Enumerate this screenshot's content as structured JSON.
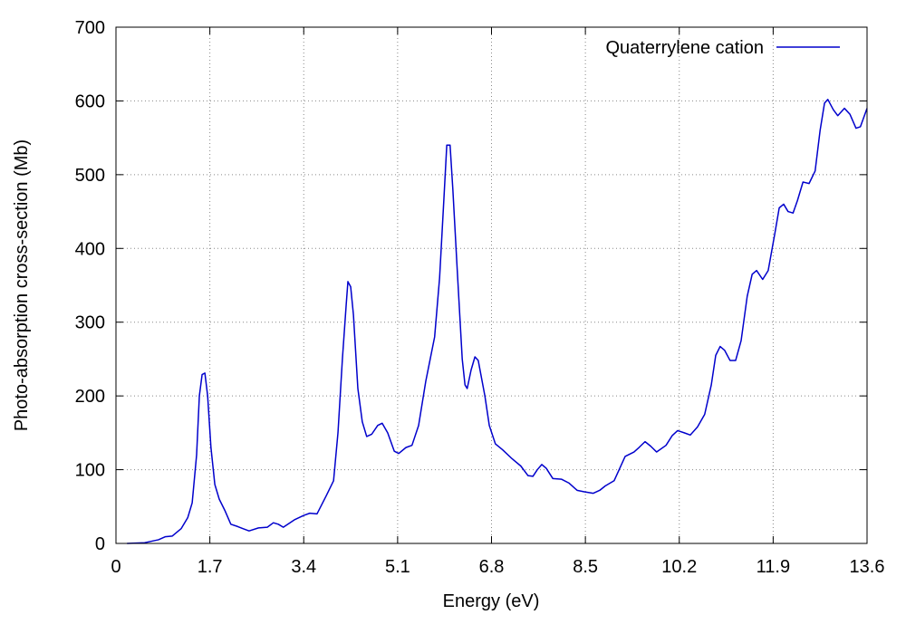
{
  "chart_data": {
    "type": "line",
    "xlabel": "Energy (eV)",
    "ylabel": "Photo-absorption cross-section (Mb)",
    "xlim": [
      0,
      13.6
    ],
    "xticks": [
      0,
      1.7,
      3.4,
      5.1,
      6.8,
      8.5,
      10.2,
      11.9,
      13.6
    ],
    "ylim": [
      0,
      700
    ],
    "yticks": [
      0,
      100,
      200,
      300,
      400,
      500,
      600,
      700
    ],
    "grid": true,
    "legend": "top-right",
    "x": [
      0.2,
      0.52,
      0.77,
      0.89,
      1.02,
      1.18,
      1.3,
      1.38,
      1.46,
      1.51,
      1.56,
      1.61,
      1.66,
      1.72,
      1.79,
      1.87,
      1.97,
      2.08,
      2.2,
      2.3,
      2.41,
      2.58,
      2.74,
      2.85,
      2.94,
      3.03,
      3.23,
      3.4,
      3.51,
      3.64,
      3.81,
      3.94,
      4.02,
      4.1,
      4.17,
      4.2,
      4.25,
      4.3,
      4.38,
      4.46,
      4.54,
      4.63,
      4.74,
      4.82,
      4.92,
      5.04,
      5.12,
      5.25,
      5.36,
      5.48,
      5.61,
      5.69,
      5.77,
      5.86,
      5.94,
      5.99,
      6.05,
      6.1,
      6.18,
      6.27,
      6.32,
      6.36,
      6.43,
      6.5,
      6.56,
      6.68,
      6.76,
      6.87,
      7.0,
      7.17,
      7.33,
      7.46,
      7.55,
      7.63,
      7.71,
      7.79,
      7.91,
      8.07,
      8.2,
      8.35,
      8.48,
      8.64,
      8.76,
      8.86,
      9.02,
      9.22,
      9.38,
      9.47,
      9.58,
      9.68,
      9.79,
      9.96,
      10.07,
      10.17,
      10.29,
      10.4,
      10.53,
      10.66,
      10.78,
      10.86,
      10.94,
      11.02,
      11.12,
      11.22,
      11.32,
      11.43,
      11.52,
      11.6,
      11.71,
      11.81,
      11.93,
      12.01,
      12.09,
      12.17,
      12.26,
      12.34,
      12.44,
      12.55,
      12.66,
      12.75,
      12.83,
      12.89,
      12.99,
      13.07,
      13.19,
      13.29,
      13.4,
      13.48,
      13.6
    ],
    "series": [
      {
        "name": "Quaterrylene cation",
        "color": "#0000cc",
        "values": [
          0,
          1,
          5,
          9,
          10,
          20,
          35,
          55,
          120,
          200,
          229,
          231,
          200,
          130,
          80,
          60,
          45,
          26,
          23,
          20,
          17,
          21,
          22,
          28,
          26,
          22,
          32,
          38,
          41,
          40,
          65,
          85,
          150,
          250,
          325,
          355,
          348,
          310,
          210,
          165,
          145,
          148,
          160,
          163,
          150,
          125,
          122,
          130,
          133,
          160,
          220,
          250,
          280,
          360,
          470,
          540,
          540,
          480,
          370,
          250,
          215,
          210,
          235,
          253,
          248,
          200,
          160,
          135,
          127,
          115,
          105,
          92,
          91,
          100,
          107,
          102,
          88,
          87,
          82,
          72,
          70,
          68,
          72,
          78,
          85,
          118,
          124,
          130,
          138,
          132,
          124,
          133,
          146,
          153,
          150,
          147,
          158,
          175,
          215,
          255,
          267,
          262,
          248,
          248,
          275,
          335,
          365,
          370,
          358,
          370,
          420,
          455,
          460,
          450,
          448,
          465,
          490,
          488,
          505,
          560,
          597,
          602,
          588,
          580,
          590,
          582,
          563,
          565,
          590
        ]
      }
    ]
  }
}
